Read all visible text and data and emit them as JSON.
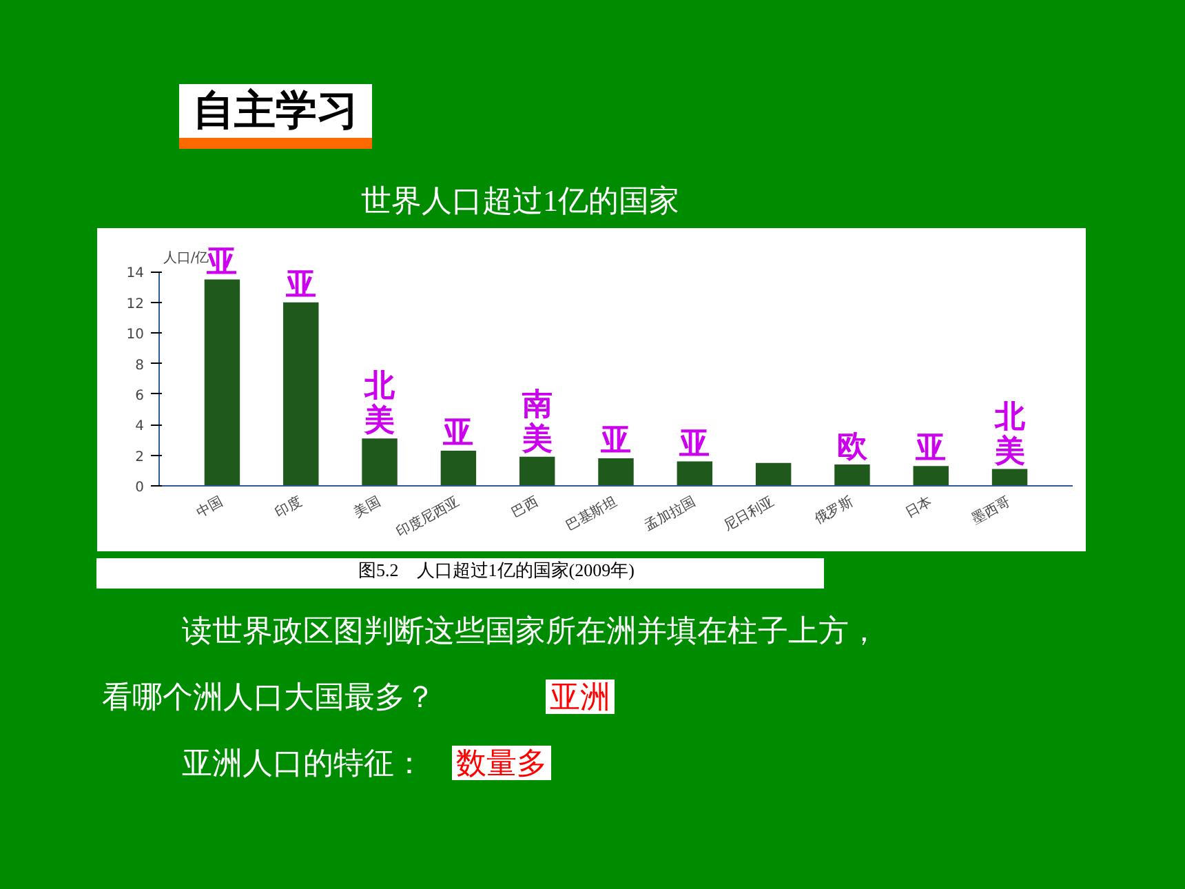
{
  "chart_data": {
    "type": "bar",
    "title": "世界人口超过1亿的国家",
    "subtitle": "自主学习",
    "ylabel": "人口/亿",
    "categories": [
      "中国",
      "印度",
      "美国",
      "印度尼西亚",
      "巴西",
      "巴基斯坦",
      "孟加拉国",
      "尼日利亚",
      "俄罗斯",
      "日本",
      "墨西哥"
    ],
    "values": [
      13.5,
      12.0,
      3.1,
      2.3,
      1.9,
      1.8,
      1.6,
      1.5,
      1.4,
      1.3,
      1.1
    ],
    "color": "#1f5a1c",
    "ylim": [
      0,
      14
    ],
    "yticks": [
      0,
      2,
      4,
      6,
      8,
      10,
      12,
      14
    ],
    "grid": false,
    "annotations": [
      "图5.2　人口超过1亿的国家(2009年)",
      "读世界政区图判断这些国家所在洲并填在柱子上方，",
      "看哪个洲人口大国最多？",
      "亚洲",
      "亚洲人口的特征：",
      "数量多",
      {
        "text": "亚",
        "x": "中国",
        "y": 13.5
      },
      {
        "text": "亚",
        "x": "印度",
        "y": 12.0
      },
      {
        "text": "北美",
        "x": "美国",
        "y": 3.1
      },
      {
        "text": "亚",
        "x": "印度尼西亚",
        "y": 2.3
      },
      {
        "text": "南美",
        "x": "巴西",
        "y": 1.9
      },
      {
        "text": "亚",
        "x": "巴基斯坦",
        "y": 1.8
      },
      {
        "text": "亚",
        "x": "孟加拉国",
        "y": 1.6
      },
      {
        "text": "欧",
        "x": "俄罗斯",
        "y": 1.4
      },
      {
        "text": "亚",
        "x": "日本",
        "y": 1.3
      },
      {
        "text": "北美",
        "x": "墨西哥",
        "y": 1.1
      }
    ]
  }
}
